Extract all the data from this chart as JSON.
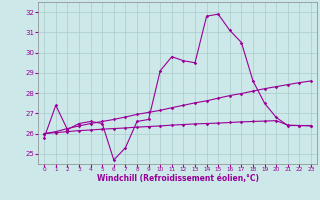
{
  "title": "",
  "xlabel": "Windchill (Refroidissement éolien,°C)",
  "background_color": "#cce8e8",
  "grid_color": "#aacccc",
  "line_color": "#990099",
  "x": [
    0,
    1,
    2,
    3,
    4,
    5,
    6,
    7,
    8,
    9,
    10,
    11,
    12,
    13,
    14,
    15,
    16,
    17,
    18,
    19,
    20,
    21,
    22,
    23
  ],
  "y_main": [
    25.8,
    27.4,
    26.2,
    26.5,
    26.6,
    26.5,
    24.7,
    25.3,
    26.6,
    26.7,
    29.1,
    29.8,
    29.6,
    29.5,
    31.8,
    31.9,
    31.1,
    30.5,
    28.6,
    27.5,
    26.8,
    26.4,
    26.4,
    26.4
  ],
  "y_lin1": [
    26.0,
    26.1,
    26.25,
    26.38,
    26.5,
    26.6,
    26.7,
    26.82,
    26.95,
    27.05,
    27.15,
    27.28,
    27.4,
    27.52,
    27.62,
    27.75,
    27.88,
    27.98,
    28.1,
    28.22,
    28.32,
    28.42,
    28.52,
    28.6
  ],
  "y_lin2": [
    26.0,
    26.05,
    26.1,
    26.15,
    26.18,
    26.22,
    26.25,
    26.28,
    26.32,
    26.35,
    26.38,
    26.42,
    26.45,
    26.48,
    26.5,
    26.52,
    26.55,
    26.58,
    26.6,
    26.62,
    26.64,
    26.42,
    26.4,
    26.38
  ],
  "ylim": [
    24.5,
    32.5
  ],
  "yticks": [
    25,
    26,
    27,
    28,
    29,
    30,
    31,
    32
  ],
  "xticks": [
    0,
    1,
    2,
    3,
    4,
    5,
    6,
    7,
    8,
    9,
    10,
    11,
    12,
    13,
    14,
    15,
    16,
    17,
    18,
    19,
    20,
    21,
    22,
    23
  ]
}
